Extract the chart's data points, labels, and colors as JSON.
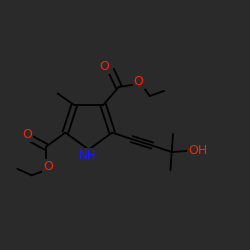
{
  "bg_color": "#1a1a1a",
  "line_color": "#000000",
  "atom_colors": {
    "O": "#ff2200",
    "N": "#1a1aff",
    "C": "#000000"
  },
  "figsize": [
    2.5,
    2.5
  ],
  "dpi": 100
}
